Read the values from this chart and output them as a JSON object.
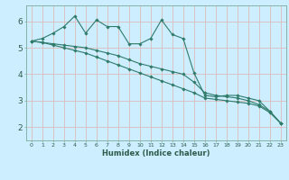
{
  "xlabel": "Humidex (Indice chaleur)",
  "background_color": "#cceeff",
  "grid_color": "#ddbbbb",
  "line_color": "#2e7b6a",
  "xlim": [
    -0.5,
    23.5
  ],
  "ylim": [
    1.5,
    6.6
  ],
  "yticks": [
    2,
    3,
    4,
    5,
    6
  ],
  "xticks": [
    0,
    1,
    2,
    3,
    4,
    5,
    6,
    7,
    8,
    9,
    10,
    11,
    12,
    13,
    14,
    15,
    16,
    17,
    18,
    19,
    20,
    21,
    22,
    23
  ],
  "series1_x": [
    0,
    1,
    2,
    3,
    4,
    5,
    6,
    7,
    8,
    9,
    10,
    11,
    12,
    13,
    14,
    15,
    16,
    17,
    18,
    19,
    20,
    21,
    22,
    23
  ],
  "series1_y": [
    5.25,
    5.35,
    5.55,
    5.8,
    6.2,
    5.55,
    6.05,
    5.8,
    5.8,
    5.15,
    5.15,
    5.35,
    6.05,
    5.5,
    5.35,
    4.05,
    3.2,
    3.15,
    3.2,
    3.2,
    3.1,
    3.0,
    2.6,
    2.15
  ],
  "series2_x": [
    0,
    1,
    2,
    3,
    4,
    5,
    6,
    7,
    8,
    9,
    10,
    11,
    12,
    13,
    14,
    15,
    16,
    17,
    18,
    19,
    20,
    21,
    22,
    23
  ],
  "series2_y": [
    5.25,
    5.2,
    5.15,
    5.1,
    5.05,
    5.0,
    4.9,
    4.8,
    4.7,
    4.55,
    4.4,
    4.3,
    4.2,
    4.1,
    4.0,
    3.7,
    3.3,
    3.2,
    3.15,
    3.1,
    3.0,
    2.85,
    2.6,
    2.15
  ],
  "series3_x": [
    0,
    1,
    2,
    3,
    4,
    5,
    6,
    7,
    8,
    9,
    10,
    11,
    12,
    13,
    14,
    15,
    16,
    17,
    18,
    19,
    20,
    21,
    22,
    23
  ],
  "series3_y": [
    5.25,
    5.2,
    5.1,
    5.0,
    4.9,
    4.8,
    4.65,
    4.5,
    4.35,
    4.2,
    4.05,
    3.9,
    3.75,
    3.6,
    3.45,
    3.3,
    3.1,
    3.05,
    3.0,
    2.95,
    2.9,
    2.8,
    2.55,
    2.15
  ]
}
